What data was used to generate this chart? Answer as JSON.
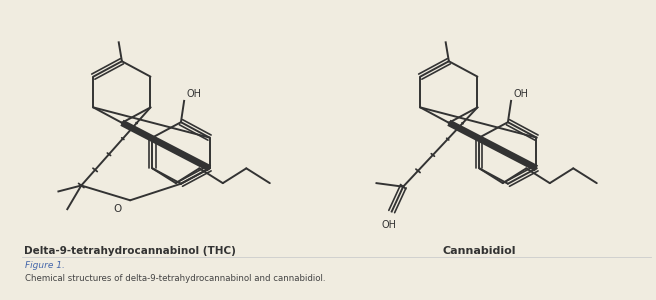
{
  "bg_color": "#f0ece0",
  "line_color": "#333333",
  "text_color": "#333333",
  "link_color": "#4466aa",
  "title_thc": "Delta-9-tetrahydrocannabinol (THC)",
  "title_cbd": "Cannabidiol",
  "figure_label": "Figure 1.",
  "caption": "Chemical structures of delta-9-tetrahydrocannabinol and cannabidiol.",
  "lw": 1.4
}
